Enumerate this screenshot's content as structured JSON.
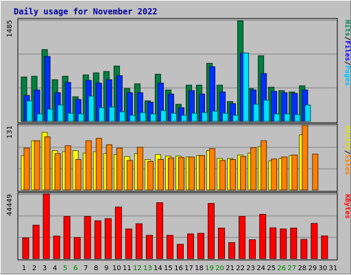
{
  "chart_data": {
    "type": "bar",
    "title": "Daily usage for November 2022",
    "x": [
      "1",
      "2",
      "3",
      "4",
      "5",
      "6",
      "7",
      "8",
      "9",
      "10",
      "11",
      "12",
      "13",
      "14",
      "15",
      "16",
      "17",
      "18",
      "19",
      "20",
      "21",
      "22",
      "23",
      "24",
      "25",
      "26",
      "27",
      "28",
      "29",
      "30",
      "31"
    ],
    "weekend_days": [
      "5",
      "6",
      "12",
      "13",
      "19",
      "20",
      "26",
      "27"
    ],
    "panels": [
      {
        "name": "top",
        "ymax_label": "1485",
        "ymax": 1485,
        "right_labels": [
          {
            "text": "Hits",
            "color": "#00805c"
          },
          {
            "text": "Files",
            "color": "#0000ff"
          },
          {
            "text": "Pages",
            "color": "#00c0ff"
          }
        ],
        "separators": [
          "/",
          "/"
        ],
        "series": [
          {
            "key": "hits",
            "color": "#008040",
            "values": [
              650,
              660,
              1050,
              610,
              660,
              360,
              680,
              710,
              730,
              810,
              480,
              550,
              300,
              690,
              460,
              250,
              530,
              530,
              850,
              530,
              290,
              1470,
              480,
              960,
              500,
              450,
              430,
              520,
              0,
              0,
              0
            ]
          },
          {
            "key": "files",
            "color": "#0030ff",
            "values": [
              380,
              460,
              950,
              420,
              570,
              320,
              600,
              560,
              610,
              670,
              420,
              420,
              280,
              560,
              400,
              200,
              450,
              400,
              800,
              430,
              260,
              1000,
              460,
              700,
              440,
              420,
              410,
              460,
              0,
              0,
              0
            ]
          },
          {
            "key": "pages",
            "color": "#00e0ff",
            "values": [
              300,
              110,
              180,
              240,
              120,
              110,
              370,
              200,
              210,
              140,
              90,
              130,
              110,
              160,
              120,
              90,
              120,
              130,
              150,
              120,
              90,
              1000,
              250,
              310,
              110,
              110,
              100,
              240,
              0,
              0,
              0
            ]
          }
        ]
      },
      {
        "name": "middle",
        "ymax_label": "131",
        "ymax": 131,
        "right_labels": [
          {
            "text": "Visits",
            "color": "#e0e000"
          },
          {
            "text": "Sites",
            "color": "#ff8000"
          }
        ],
        "separators": [
          "/"
        ],
        "series": [
          {
            "key": "visits",
            "color": "#ffff00",
            "values": [
              70,
              100,
              117,
              80,
              78,
              80,
              75,
              78,
              74,
              72,
              68,
              74,
              62,
              72,
              69,
              69,
              67,
              70,
              80,
              64,
              64,
              71,
              75,
              88,
              59,
              64,
              70,
              112,
              0,
              0,
              0
            ]
          },
          {
            "key": "sites",
            "color": "#ff8000",
            "values": [
              85,
              100,
              108,
              74,
              90,
              62,
              100,
              105,
              92,
              85,
              60,
              87,
              58,
              62,
              65,
              66,
              67,
              70,
              84,
              60,
              62,
              68,
              86,
              100,
              63,
              67,
              71,
              131,
              73,
              0,
              0
            ]
          }
        ]
      },
      {
        "name": "bottom",
        "ymax_label": "44449",
        "ymax": 44449,
        "right_labels": [
          {
            "text": "KBytes",
            "color": "#ff0000"
          }
        ],
        "separators": [],
        "series": [
          {
            "key": "kbytes",
            "color": "#ff0000",
            "values": [
              14200,
              23000,
              44449,
              15500,
              29000,
              14500,
              29000,
              26000,
              27500,
              35500,
              20400,
              24000,
              16000,
              38500,
              16000,
              9800,
              17000,
              17400,
              38000,
              21000,
              11000,
              29000,
              13000,
              30500,
              21200,
              20400,
              21000,
              13200,
              24200,
              15600,
              0
            ]
          }
        ]
      }
    ]
  },
  "colors": {
    "title": "#0000a0",
    "weekend": "#008000",
    "weekday": "#000000",
    "plot_bg": "#c0c0c0",
    "grid": "#808080"
  }
}
